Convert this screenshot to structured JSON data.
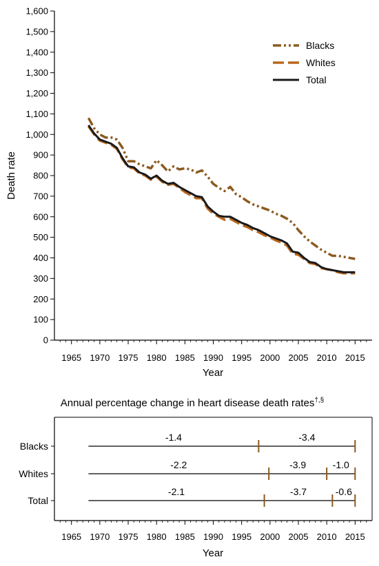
{
  "chart_data": [
    {
      "type": "line",
      "ylabel": "Death rate",
      "xlabel": "Year",
      "xlim": [
        1962,
        2018
      ],
      "ylim": [
        0,
        1600
      ],
      "x_ticks": [
        1965,
        1970,
        1975,
        1980,
        1985,
        1990,
        1995,
        2000,
        2005,
        2010,
        2015
      ],
      "y_ticks": [
        0,
        100,
        200,
        300,
        400,
        500,
        600,
        700,
        800,
        900,
        1000,
        1100,
        1200,
        1300,
        1400,
        1500,
        1600
      ],
      "y_tick_labels": [
        "0",
        "100",
        "200",
        "300",
        "400",
        "500",
        "600",
        "700",
        "800",
        "900",
        "1,000",
        "1,100",
        "1,200",
        "1,300",
        "1,400",
        "1,500",
        "1,600"
      ],
      "legend_position": "top-right",
      "series": [
        {
          "name": "Blacks",
          "color": "#8c5a1f",
          "style": "dash-dot-dot",
          "x": [
            1968,
            1969,
            1970,
            1971,
            1972,
            1973,
            1974,
            1975,
            1976,
            1977,
            1978,
            1979,
            1980,
            1981,
            1982,
            1983,
            1984,
            1985,
            1986,
            1987,
            1988,
            1989,
            1990,
            1991,
            1992,
            1993,
            1994,
            1995,
            1996,
            1997,
            1998,
            1999,
            2000,
            2001,
            2002,
            2003,
            2004,
            2005,
            2006,
            2007,
            2008,
            2009,
            2010,
            2011,
            2012,
            2013,
            2014,
            2015
          ],
          "values": [
            1080,
            1030,
            1000,
            985,
            985,
            975,
            935,
            870,
            870,
            855,
            845,
            835,
            875,
            850,
            820,
            845,
            830,
            835,
            830,
            815,
            825,
            795,
            760,
            740,
            725,
            745,
            710,
            695,
            675,
            660,
            650,
            640,
            630,
            615,
            605,
            590,
            570,
            535,
            505,
            480,
            460,
            440,
            425,
            410,
            410,
            405,
            400,
            395
          ]
        },
        {
          "name": "Whites",
          "color": "#b9671c",
          "style": "dashed",
          "x": [
            1968,
            1969,
            1970,
            1971,
            1972,
            1973,
            1974,
            1975,
            1976,
            1977,
            1978,
            1979,
            1980,
            1981,
            1982,
            1983,
            1984,
            1985,
            1986,
            1987,
            1988,
            1989,
            1990,
            1991,
            1992,
            1993,
            1994,
            1995,
            1996,
            1997,
            1998,
            1999,
            2000,
            2001,
            2002,
            2003,
            2004,
            2005,
            2006,
            2007,
            2008,
            2009,
            2010,
            2011,
            2012,
            2013,
            2014,
            2015
          ],
          "values": [
            1040,
            1000,
            970,
            960,
            950,
            930,
            880,
            840,
            835,
            810,
            800,
            780,
            795,
            770,
            755,
            760,
            740,
            720,
            705,
            690,
            690,
            640,
            615,
            600,
            585,
            590,
            575,
            560,
            550,
            535,
            525,
            510,
            500,
            485,
            475,
            460,
            420,
            415,
            395,
            375,
            370,
            350,
            345,
            340,
            330,
            325,
            325,
            325
          ]
        },
        {
          "name": "Total",
          "color": "#1a1a1a",
          "style": "solid",
          "x": [
            1968,
            1969,
            1970,
            1971,
            1972,
            1973,
            1974,
            1975,
            1976,
            1977,
            1978,
            1979,
            1980,
            1981,
            1982,
            1983,
            1984,
            1985,
            1986,
            1987,
            1988,
            1989,
            1990,
            1991,
            1992,
            1993,
            1994,
            1995,
            1996,
            1997,
            1998,
            1999,
            2000,
            2001,
            2002,
            2003,
            2004,
            2005,
            2006,
            2007,
            2008,
            2009,
            2010,
            2011,
            2012,
            2013,
            2014,
            2015
          ],
          "values": [
            1045,
            1005,
            975,
            965,
            955,
            935,
            885,
            845,
            840,
            815,
            805,
            785,
            800,
            775,
            760,
            765,
            745,
            730,
            715,
            700,
            695,
            650,
            625,
            605,
            600,
            600,
            585,
            570,
            560,
            545,
            535,
            520,
            505,
            495,
            485,
            470,
            430,
            425,
            400,
            380,
            375,
            355,
            345,
            340,
            335,
            330,
            330,
            330
          ]
        }
      ]
    },
    {
      "type": "segments",
      "title": "Annual percentage change in heart disease death rates",
      "title_superscript": "†,§",
      "xlabel": "Year",
      "xlim": [
        1962,
        2018
      ],
      "x_ticks": [
        1965,
        1970,
        1975,
        1980,
        1985,
        1990,
        1995,
        2000,
        2005,
        2010,
        2015
      ],
      "rows": [
        {
          "label": "Blacks",
          "start": 1968,
          "end": 2015,
          "breaks": [
            1998
          ],
          "segment_values": [
            "-1.4",
            "-3.4"
          ]
        },
        {
          "label": "Whites",
          "start": 1968,
          "end": 2015,
          "breaks": [
            1999.8,
            2010
          ],
          "segment_values": [
            "-2.2",
            "-3.9",
            "-1.0"
          ]
        },
        {
          "label": "Total",
          "start": 1968,
          "end": 2015,
          "breaks": [
            1999,
            2011
          ],
          "segment_values": [
            "-2.1",
            "-3.7",
            "-0.6"
          ]
        }
      ]
    }
  ],
  "colors": {
    "axis": "#000000",
    "break_tick": "#8c5a1f",
    "row_line": "#000000"
  }
}
